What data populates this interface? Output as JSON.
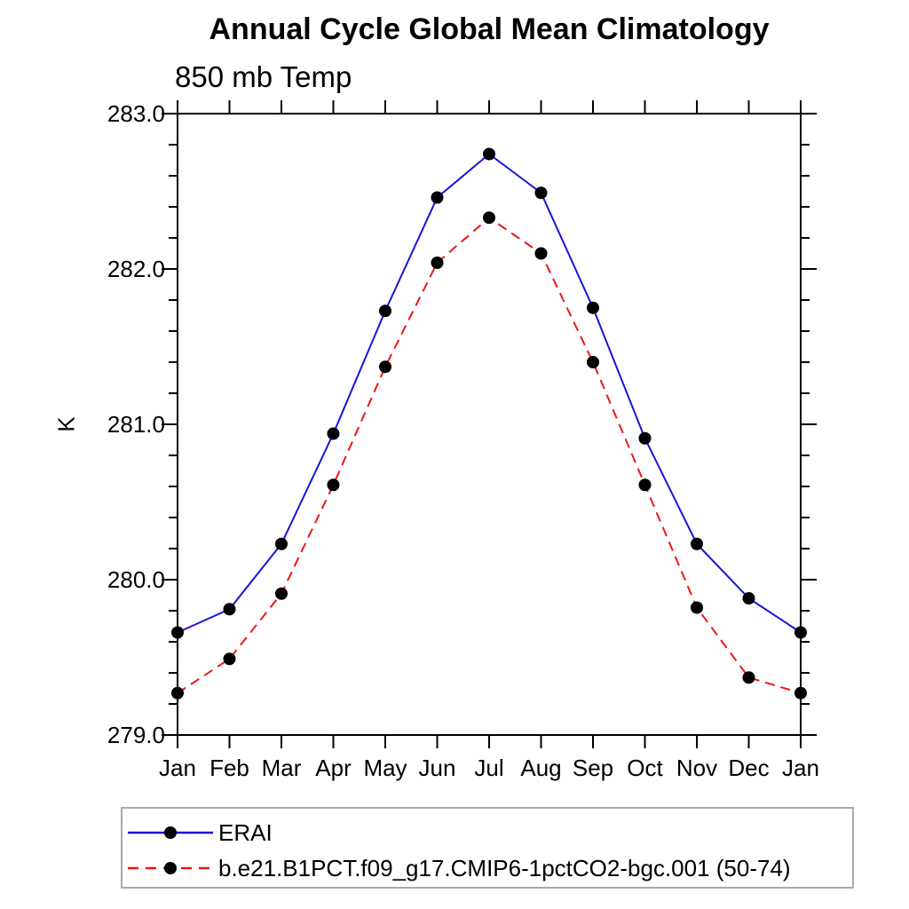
{
  "chart_data": {
    "type": "line",
    "title": "Annual Cycle Global Mean Climatology",
    "subtitle": "850 mb Temp",
    "ylabel": "K",
    "xlabel": "",
    "x_tick_labels": [
      "Jan",
      "Feb",
      "Mar",
      "Apr",
      "May",
      "Jun",
      "Jul",
      "Aug",
      "Sep",
      "Oct",
      "Nov",
      "Dec",
      "Jan"
    ],
    "y_ticks": [
      279.0,
      280.0,
      281.0,
      282.0,
      283.0
    ],
    "y_tick_format": "one-decimal",
    "y_minor_tick_step": 0.2,
    "ylim": [
      279.0,
      283.0
    ],
    "grid": false,
    "frame_color": "#000000",
    "legend_position": "below-plot-left",
    "legend_border_color": "#a9a9a9",
    "marker": "filled-circle",
    "marker_color": "#000000",
    "series": [
      {
        "name": "ERAI",
        "color": "#1414e0",
        "style": "solid",
        "values": [
          279.66,
          279.81,
          280.23,
          280.94,
          281.73,
          282.46,
          282.74,
          282.49,
          281.75,
          280.91,
          280.23,
          279.88,
          279.66
        ]
      },
      {
        "name": "b.e21.B1PCT.f09_g17.CMIP6-1pctCO2-bgc.001 (50-74)",
        "color": "#ee1515",
        "style": "dashed",
        "values": [
          279.27,
          279.49,
          279.91,
          280.61,
          281.37,
          282.04,
          282.33,
          282.1,
          281.4,
          280.61,
          279.82,
          279.37,
          279.27
        ]
      }
    ]
  }
}
